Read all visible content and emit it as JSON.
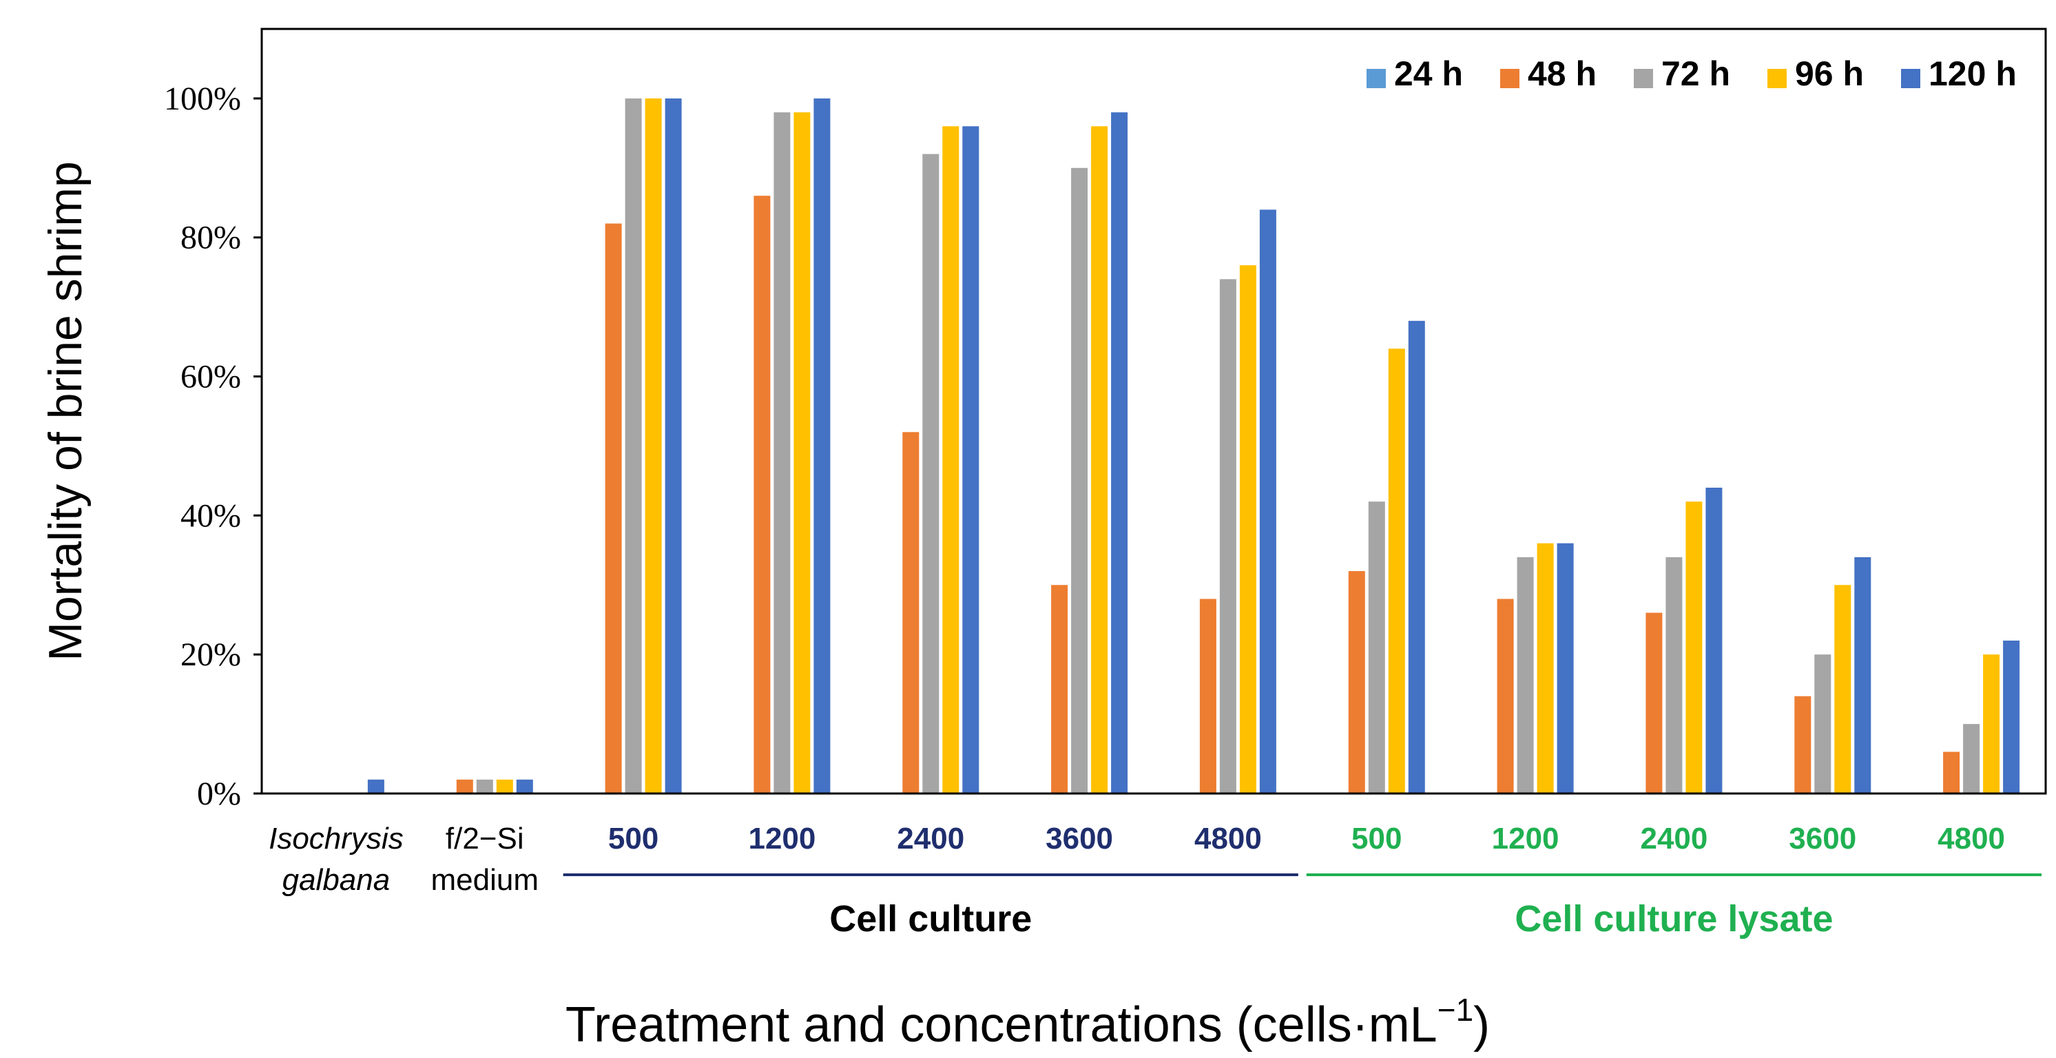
{
  "colors": {
    "navy": "#1f2e6e",
    "green": "#1fb050",
    "axis": "#000000"
  },
  "chart_data": {
    "type": "bar",
    "title": "",
    "ylabel": "Mortality of brine shrimp",
    "xlabel_main": "Treatment and concentrations (cells·mL",
    "xlabel_sup": "−1",
    "xlabel_end": ")",
    "ylim": [
      0,
      110
    ],
    "yticks": [
      0,
      20,
      40,
      60,
      80,
      100
    ],
    "ytick_labels": [
      "0%",
      "20%",
      "40%",
      "60%",
      "80%",
      "100%"
    ],
    "categories": [
      {
        "label": "Isochrysis galbana",
        "lines": [
          "Isochrysis",
          "galbana"
        ],
        "style": "control-italic"
      },
      {
        "label": "f/2−Si medium",
        "lines": [
          "f/2−Si",
          "medium"
        ],
        "style": "control"
      },
      {
        "label": "500",
        "lines": [
          "500"
        ],
        "style": "culture"
      },
      {
        "label": "1200",
        "lines": [
          "1200"
        ],
        "style": "culture"
      },
      {
        "label": "2400",
        "lines": [
          "2400"
        ],
        "style": "culture"
      },
      {
        "label": "3600",
        "lines": [
          "3600"
        ],
        "style": "culture"
      },
      {
        "label": "4800",
        "lines": [
          "4800"
        ],
        "style": "culture"
      },
      {
        "label": "500",
        "lines": [
          "500"
        ],
        "style": "lysate"
      },
      {
        "label": "1200",
        "lines": [
          "1200"
        ],
        "style": "lysate"
      },
      {
        "label": "2400",
        "lines": [
          "2400"
        ],
        "style": "lysate"
      },
      {
        "label": "3600",
        "lines": [
          "3600"
        ],
        "style": "lysate"
      },
      {
        "label": "4800",
        "lines": [
          "4800"
        ],
        "style": "lysate"
      }
    ],
    "groups": [
      {
        "label": "Cell culture",
        "from": 2,
        "to": 6,
        "style": "culture"
      },
      {
        "label": "Cell culture lysate",
        "from": 7,
        "to": 11,
        "style": "lysate"
      }
    ],
    "series": [
      {
        "name": "24 h",
        "color": "#5b9bd5",
        "values": [
          0,
          0,
          0,
          0,
          0,
          0,
          0,
          0,
          0,
          0,
          0,
          0
        ]
      },
      {
        "name": "48 h",
        "color": "#ed7d31",
        "values": [
          0,
          2,
          82,
          86,
          52,
          30,
          28,
          32,
          28,
          26,
          14,
          6
        ]
      },
      {
        "name": "72 h",
        "color": "#a5a5a5",
        "values": [
          0,
          2,
          100,
          98,
          92,
          90,
          74,
          42,
          34,
          34,
          20,
          10
        ]
      },
      {
        "name": "96 h",
        "color": "#ffc000",
        "values": [
          0,
          2,
          100,
          98,
          96,
          96,
          76,
          64,
          36,
          42,
          30,
          20
        ]
      },
      {
        "name": "120 h",
        "color": "#4472c4",
        "values": [
          2,
          2,
          100,
          100,
          96,
          98,
          84,
          68,
          36,
          44,
          34,
          22
        ]
      }
    ],
    "legend": "top-right",
    "grid": false
  }
}
